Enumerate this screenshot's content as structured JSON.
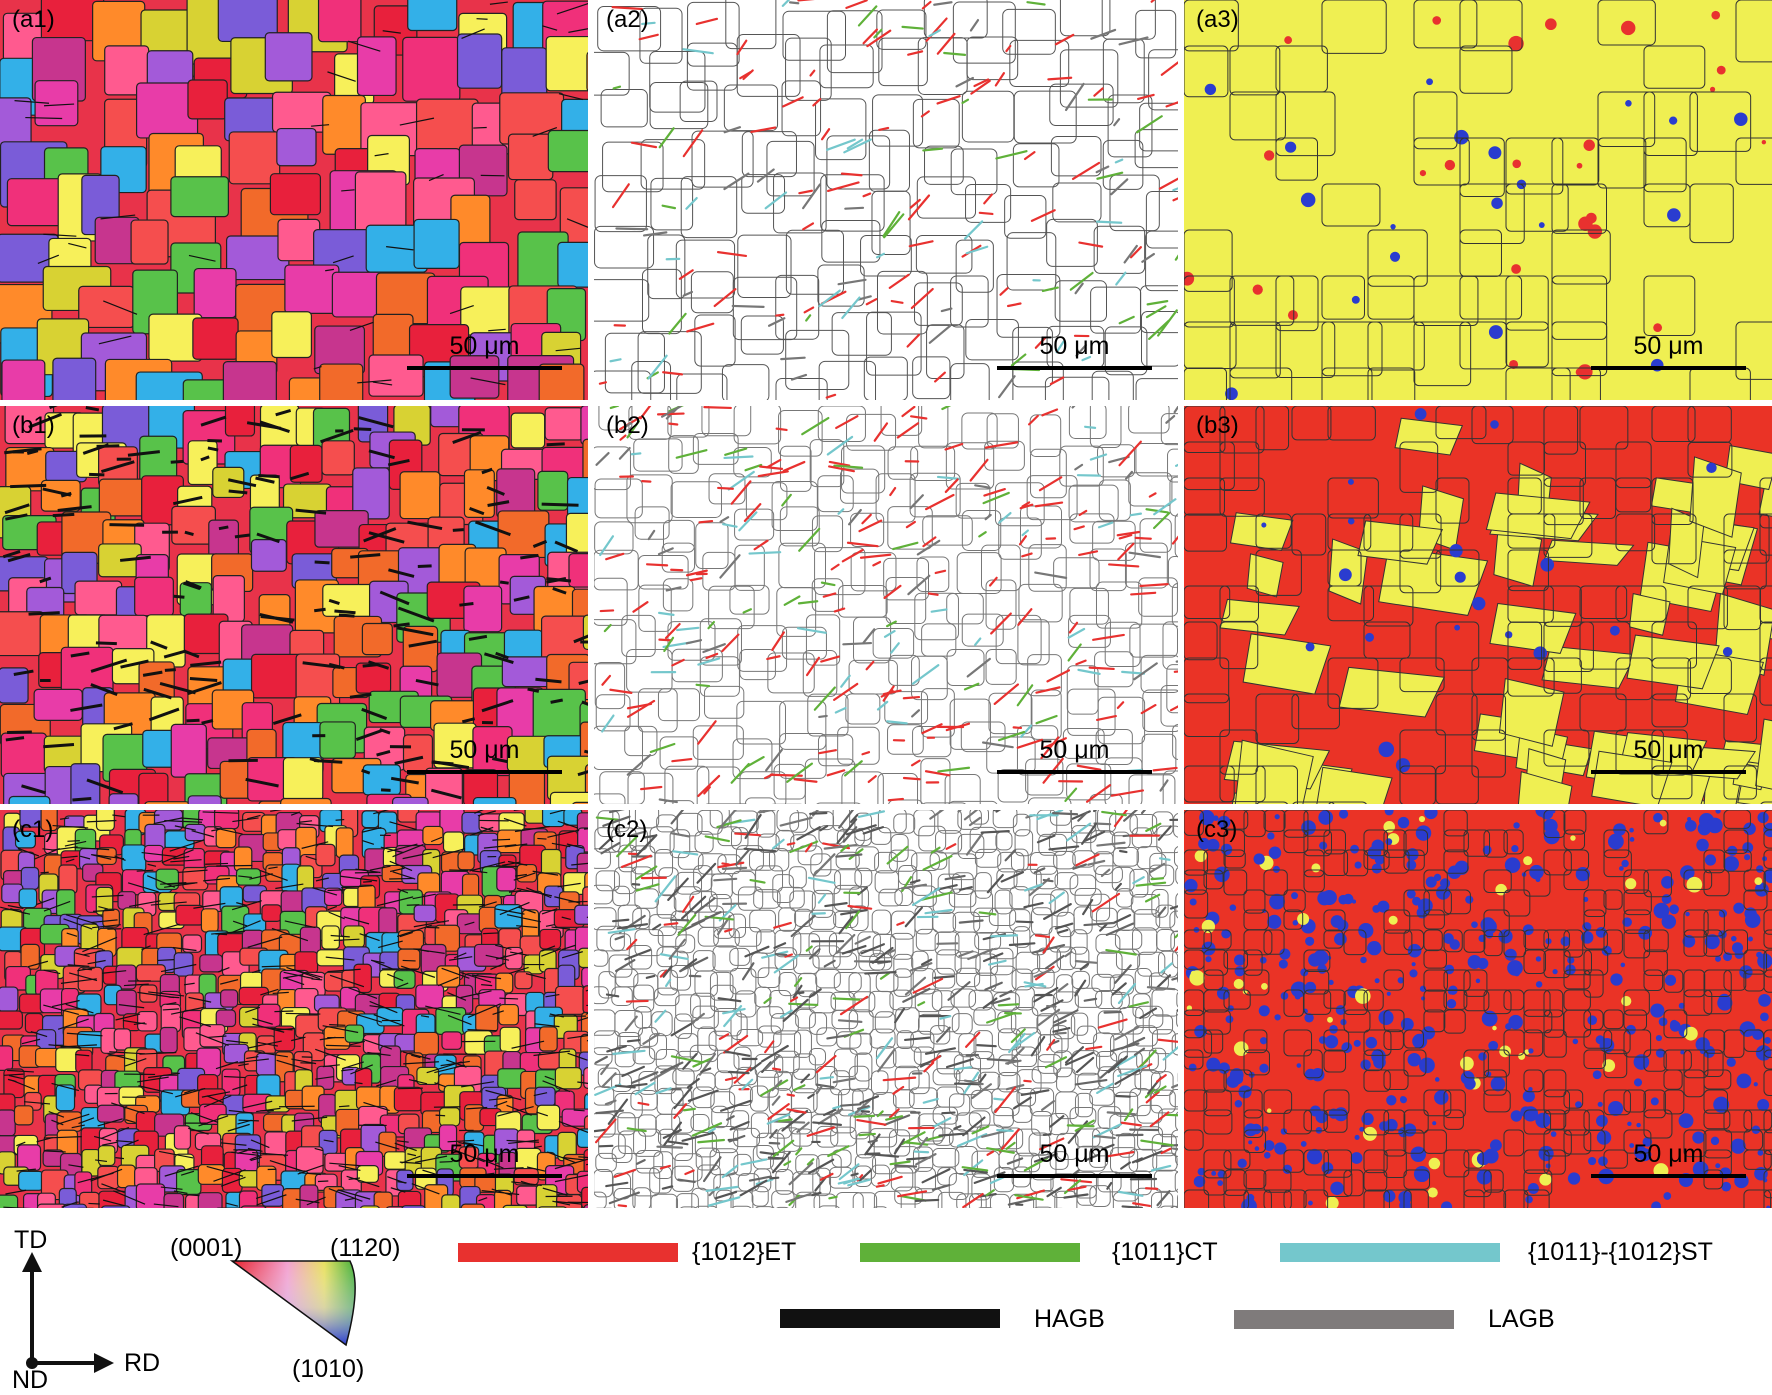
{
  "panels": [
    {
      "id": "a1",
      "label": "(a1)",
      "type": "ipf",
      "scale": "50 μm"
    },
    {
      "id": "a2",
      "label": "(a2)",
      "type": "twin",
      "scale": "50 μm"
    },
    {
      "id": "a3",
      "label": "(a3)",
      "type": "phase",
      "scale": "50 μm"
    },
    {
      "id": "b1",
      "label": "(b1)",
      "type": "ipf",
      "scale": "50 μm"
    },
    {
      "id": "b2",
      "label": "(b2)",
      "type": "twin",
      "scale": "50 μm"
    },
    {
      "id": "b3",
      "label": "(b3)",
      "type": "phase",
      "scale": "50 μm"
    },
    {
      "id": "c1",
      "label": "(c1)",
      "type": "ipf",
      "scale": "50 μm"
    },
    {
      "id": "c2",
      "label": "(c2)",
      "type": "twin",
      "scale": "50 μm"
    },
    {
      "id": "c3",
      "label": "(c3)",
      "type": "phase",
      "scale": "50 μm"
    }
  ],
  "legend": {
    "axes": {
      "td": "TD",
      "rd": "RD",
      "nd": "ND"
    },
    "ipf": {
      "top_left": "(0001)",
      "top_right": "(11\u00062\u00060)",
      "bottom": "(10\u00061\u00060)"
    },
    "items": [
      {
        "key": "et",
        "label": "{10\u00061\u00062}ET",
        "color": "#e8312f"
      },
      {
        "key": "ct",
        "label": "{10\u00061\u00061}CT",
        "color": "#5fb139"
      },
      {
        "key": "st",
        "label": "{10\u00061\u00061}-{10\u00061\u00062}ST",
        "color": "#74c7cc"
      },
      {
        "key": "hagb",
        "label": "HAGB",
        "color": "#111111"
      },
      {
        "key": "lagb",
        "label": "LAGB",
        "color": "#7f7b7b"
      }
    ]
  }
}
